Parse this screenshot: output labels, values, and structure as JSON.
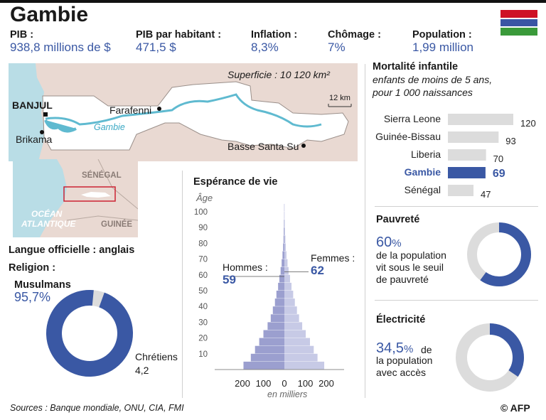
{
  "header": {
    "title": "Gambie",
    "flag_colors": [
      "#ce1126",
      "#ffffff",
      "#3a55a4",
      "#ffffff",
      "#3a9a3a"
    ]
  },
  "stats": [
    {
      "label": "PIB :",
      "value_num": "938,8",
      "value_unit": " millions de $"
    },
    {
      "label": "PIB par habitant :",
      "value_num": "471,5",
      "value_unit": " $"
    },
    {
      "label": "Inflation :",
      "value_num": "8,3%",
      "value_unit": ""
    },
    {
      "label": "Chômage :",
      "value_num": "7%",
      "value_unit": ""
    },
    {
      "label": "Population :",
      "value_num": "1,99",
      "value_unit": " million"
    }
  ],
  "map": {
    "surface": "Superficie : 10 120 km²",
    "scale": "12 km",
    "river": "Gambie",
    "cities": [
      "BANJUL",
      "Brikama",
      "Farafenni",
      "Basse Santa Su"
    ],
    "inset_labels": [
      "SÉNÉGAL",
      "OCÉAN",
      "ATLANTIQUE",
      "GUINÉE"
    ]
  },
  "mortality": {
    "title": "Mortalité infantile",
    "subtitle_1": "enfants de moins de 5 ans,",
    "subtitle_2": "pour 1 000 naissances"
  },
  "language": "Langue officielle : anglais",
  "religion": {
    "title": "Religion :",
    "muslims_label": "Musulmans",
    "muslims_value": "95,7%",
    "christians_label": "Chrétiens",
    "christians_value": "4,2"
  },
  "poverty": {
    "title": "Pauvreté",
    "value": "60",
    "pct": "%",
    "text_1": "de la population",
    "text_2": "vit sous le seuil",
    "text_3": "de pauvreté"
  },
  "electricity": {
    "title": "Électricité",
    "value": "34,5",
    "pct": "%",
    "text_1": "de",
    "text_2": "la population",
    "text_3": "avec accès"
  },
  "pyramid": {
    "title": "Espérance de vie",
    "yaxis_label": "Âge",
    "men_label": "Hommes :",
    "men_value": "59",
    "women_label": "Femmes :",
    "women_value": "62",
    "xlabel": "en milliers"
  },
  "footer": {
    "sources": "Sources : Banque mondiale, ONU, CIA, FMI",
    "credit": "© AFP"
  },
  "colors": {
    "blue": "#3a58a4",
    "grey": "#dcdcdc",
    "men": "#9b9fcf",
    "women": "#c7cae6"
  },
  "chart_data": [
    {
      "type": "bar",
      "title": "Mortalité infantile",
      "categories": [
        "Sierra Leone",
        "Guinée-Bissau",
        "Liberia",
        "Gambie",
        "Sénégal"
      ],
      "values": [
        120,
        93,
        70,
        69,
        47
      ],
      "highlight": "Gambie"
    },
    {
      "type": "pie",
      "title": "Religion :",
      "categories": [
        "Musulmans",
        "Chrétiens"
      ],
      "values": [
        95.7,
        4.2
      ]
    },
    {
      "type": "pie",
      "title": "Pauvreté",
      "values": [
        60,
        40
      ]
    },
    {
      "type": "pie",
      "title": "Électricité",
      "values": [
        34.5,
        65.5
      ]
    },
    {
      "type": "bar",
      "title": "Espérance de vie",
      "orientation": "horizontal-pyramid",
      "ylabel": "Âge",
      "xlabel": "en milliers",
      "age_ticks": [
        10,
        20,
        30,
        40,
        50,
        60,
        70,
        80,
        90,
        100
      ],
      "x_ticks": [
        "200",
        "100",
        "0",
        "100",
        "200"
      ],
      "xlim": [
        -200,
        200
      ],
      "age_groups": [
        "0-4",
        "5-9",
        "10-14",
        "15-19",
        "20-24",
        "25-29",
        "30-34",
        "35-39",
        "40-44",
        "45-49",
        "50-54",
        "55-59",
        "60-64",
        "65-69",
        "70-74",
        "75-79",
        "80-84",
        "85-89",
        "90-94",
        "95-99",
        "100+"
      ],
      "series": [
        {
          "name": "Hommes",
          "values": [
            195,
            160,
            140,
            120,
            100,
            80,
            65,
            55,
            45,
            38,
            30,
            24,
            18,
            13,
            9,
            6,
            4,
            3,
            2,
            1,
            1
          ]
        },
        {
          "name": "Femmes",
          "values": [
            190,
            158,
            140,
            122,
            102,
            85,
            70,
            60,
            50,
            42,
            34,
            27,
            20,
            15,
            10,
            7,
            5,
            3,
            2,
            1,
            1
          ]
        }
      ]
    }
  ]
}
